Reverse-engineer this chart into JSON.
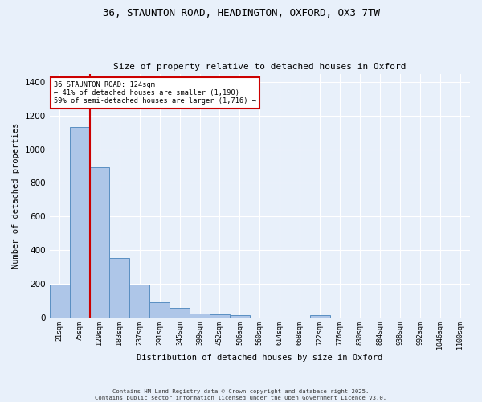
{
  "title_line1": "36, STAUNTON ROAD, HEADINGTON, OXFORD, OX3 7TW",
  "title_line2": "Size of property relative to detached houses in Oxford",
  "xlabel": "Distribution of detached houses by size in Oxford",
  "ylabel": "Number of detached properties",
  "bar_labels": [
    "21sqm",
    "75sqm",
    "129sqm",
    "183sqm",
    "237sqm",
    "291sqm",
    "345sqm",
    "399sqm",
    "452sqm",
    "506sqm",
    "560sqm",
    "614sqm",
    "668sqm",
    "722sqm",
    "776sqm",
    "830sqm",
    "884sqm",
    "938sqm",
    "992sqm",
    "1046sqm",
    "1100sqm"
  ],
  "bar_values": [
    195,
    1130,
    895,
    350,
    195,
    90,
    55,
    20,
    18,
    12,
    0,
    0,
    0,
    12,
    0,
    0,
    0,
    0,
    0,
    0,
    0
  ],
  "bar_color": "#aec6e8",
  "bar_edge_color": "#5a8fc2",
  "background_color": "#e8f0fa",
  "grid_color": "#ffffff",
  "vline_color": "#cc0000",
  "annotation_text": "36 STAUNTON ROAD: 124sqm\n← 41% of detached houses are smaller (1,190)\n59% of semi-detached houses are larger (1,716) →",
  "annotation_box_color": "#ffffff",
  "annotation_box_edge": "#cc0000",
  "ylim": [
    0,
    1450
  ],
  "yticks": [
    0,
    200,
    400,
    600,
    800,
    1000,
    1200,
    1400
  ],
  "footer_line1": "Contains HM Land Registry data © Crown copyright and database right 2025.",
  "footer_line2": "Contains public sector information licensed under the Open Government Licence v3.0."
}
